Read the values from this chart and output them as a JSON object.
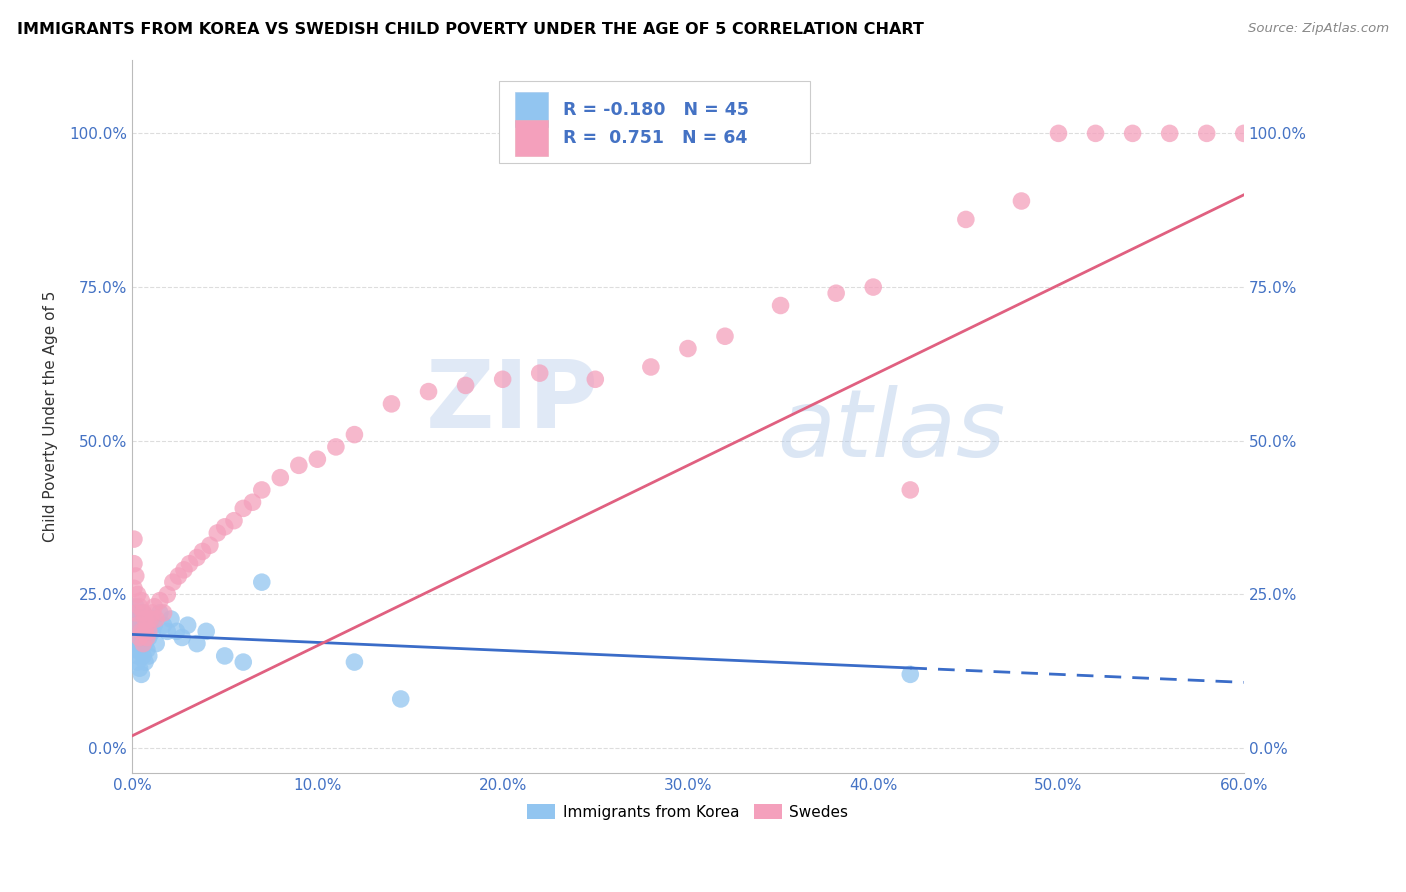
{
  "title": "IMMIGRANTS FROM KOREA VS SWEDISH CHILD POVERTY UNDER THE AGE OF 5 CORRELATION CHART",
  "source": "Source: ZipAtlas.com",
  "ylabel": "Child Poverty Under the Age of 5",
  "legend_label_1": "Immigrants from Korea",
  "legend_label_2": "Swedes",
  "R1": -0.18,
  "N1": 45,
  "R2": 0.751,
  "N2": 64,
  "color_blue": "#92C5F0",
  "color_pink": "#F4A0BC",
  "color_blue_line": "#3A6CC8",
  "color_pink_line": "#E06080",
  "color_blue_text": "#4472C4",
  "xlim": [
    0.0,
    0.6
  ],
  "ylim": [
    -0.04,
    1.12
  ],
  "yticks": [
    0.0,
    0.25,
    0.5,
    0.75,
    1.0
  ],
  "ytick_labels": [
    "0.0%",
    "25.0%",
    "50.0%",
    "75.0%",
    "100.0%"
  ],
  "xticks": [
    0.0,
    0.1,
    0.2,
    0.3,
    0.4,
    0.5,
    0.6
  ],
  "xtick_labels": [
    "0.0%",
    "10.0%",
    "20.0%",
    "30.0%",
    "40.0%",
    "50.0%",
    "60.0%"
  ],
  "blue_scatter_x": [
    0.001,
    0.001,
    0.001,
    0.002,
    0.002,
    0.002,
    0.002,
    0.003,
    0.003,
    0.003,
    0.003,
    0.004,
    0.004,
    0.004,
    0.005,
    0.005,
    0.005,
    0.006,
    0.006,
    0.006,
    0.007,
    0.007,
    0.008,
    0.008,
    0.009,
    0.009,
    0.01,
    0.011,
    0.012,
    0.013,
    0.015,
    0.017,
    0.019,
    0.021,
    0.024,
    0.027,
    0.03,
    0.035,
    0.04,
    0.05,
    0.06,
    0.07,
    0.12,
    0.145,
    0.42
  ],
  "blue_scatter_y": [
    0.17,
    0.2,
    0.22,
    0.16,
    0.19,
    0.21,
    0.23,
    0.15,
    0.18,
    0.2,
    0.14,
    0.16,
    0.19,
    0.13,
    0.17,
    0.2,
    0.12,
    0.15,
    0.18,
    0.22,
    0.14,
    0.17,
    0.16,
    0.19,
    0.15,
    0.18,
    0.21,
    0.19,
    0.2,
    0.17,
    0.22,
    0.2,
    0.19,
    0.21,
    0.19,
    0.18,
    0.2,
    0.17,
    0.19,
    0.15,
    0.14,
    0.27,
    0.14,
    0.08,
    0.12
  ],
  "pink_scatter_x": [
    0.001,
    0.001,
    0.001,
    0.002,
    0.002,
    0.003,
    0.003,
    0.004,
    0.004,
    0.005,
    0.005,
    0.006,
    0.006,
    0.007,
    0.007,
    0.008,
    0.008,
    0.009,
    0.01,
    0.011,
    0.012,
    0.013,
    0.015,
    0.017,
    0.019,
    0.022,
    0.025,
    0.028,
    0.031,
    0.035,
    0.038,
    0.042,
    0.046,
    0.05,
    0.055,
    0.06,
    0.065,
    0.07,
    0.08,
    0.09,
    0.1,
    0.11,
    0.12,
    0.14,
    0.16,
    0.18,
    0.2,
    0.22,
    0.25,
    0.28,
    0.3,
    0.32,
    0.35,
    0.38,
    0.4,
    0.42,
    0.45,
    0.48,
    0.5,
    0.52,
    0.54,
    0.56,
    0.58,
    0.6
  ],
  "pink_scatter_y": [
    0.26,
    0.3,
    0.34,
    0.22,
    0.28,
    0.2,
    0.25,
    0.18,
    0.23,
    0.19,
    0.24,
    0.17,
    0.22,
    0.19,
    0.21,
    0.18,
    0.2,
    0.19,
    0.21,
    0.22,
    0.23,
    0.21,
    0.24,
    0.22,
    0.25,
    0.27,
    0.28,
    0.29,
    0.3,
    0.31,
    0.32,
    0.33,
    0.35,
    0.36,
    0.37,
    0.39,
    0.4,
    0.42,
    0.44,
    0.46,
    0.47,
    0.49,
    0.51,
    0.56,
    0.58,
    0.59,
    0.6,
    0.61,
    0.6,
    0.62,
    0.65,
    0.67,
    0.72,
    0.74,
    0.75,
    0.42,
    0.86,
    0.89,
    1.0,
    1.0,
    1.0,
    1.0,
    1.0,
    1.0
  ],
  "watermark_zip": "ZIP",
  "watermark_atlas": "atlas",
  "background_color": "#FFFFFF",
  "grid_color": "#DDDDDD"
}
